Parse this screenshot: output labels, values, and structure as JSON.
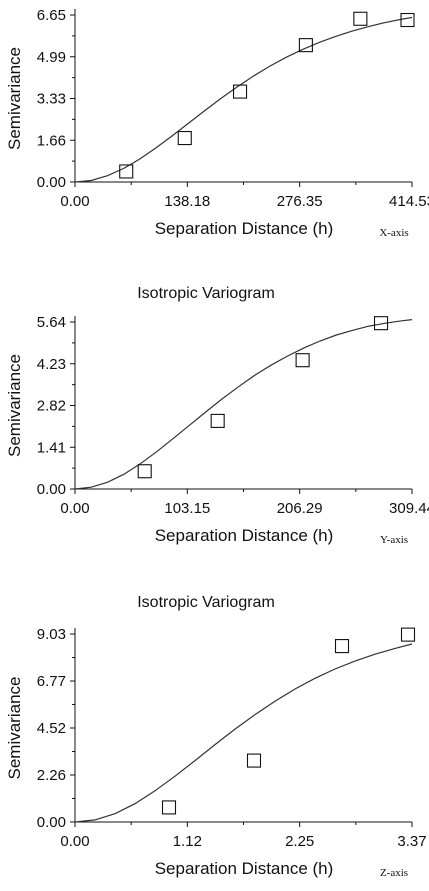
{
  "chart_data": [
    {
      "type": "scatter",
      "title": "",
      "xlabel": "Separation Distance (h)",
      "ylabel": "Semivariance",
      "axis_tag": "X-axis",
      "xlim": [
        0,
        414.53
      ],
      "ylim": [
        0,
        6.65
      ],
      "x_ticks": [
        "0.00",
        "138.18",
        "276.35",
        "414.53"
      ],
      "y_ticks": [
        "0.00",
        "1.66",
        "3.33",
        "4.99",
        "6.65"
      ],
      "grid": false,
      "series": [
        {
          "marker": "open-square",
          "points": [
            {
              "x": 63,
              "y": 0.42
            },
            {
              "x": 135,
              "y": 1.75
            },
            {
              "x": 203,
              "y": 3.6
            },
            {
              "x": 284,
              "y": 5.45
            },
            {
              "x": 351,
              "y": 6.5
            },
            {
              "x": 409,
              "y": 6.45
            }
          ]
        }
      ],
      "model_curve": {
        "type": "line",
        "x": [
          0,
          20,
          40,
          60,
          80,
          100,
          120,
          140,
          160,
          180,
          200,
          220,
          240,
          260,
          280,
          300,
          320,
          340,
          360,
          380,
          400,
          414.53
        ],
        "y": [
          0.0,
          0.06,
          0.25,
          0.54,
          0.92,
          1.37,
          1.85,
          2.35,
          2.85,
          3.34,
          3.8,
          4.23,
          4.62,
          4.97,
          5.28,
          5.55,
          5.79,
          6.0,
          6.18,
          6.34,
          6.47,
          6.55
        ]
      }
    },
    {
      "type": "scatter",
      "title": "Isotropic Variogram",
      "xlabel": "Separation Distance (h)",
      "ylabel": "Semivariance",
      "axis_tag": "Y-axis",
      "xlim": [
        0,
        309.44
      ],
      "ylim": [
        0,
        5.64
      ],
      "x_ticks": [
        "0.00",
        "103.15",
        "206.29",
        "309.44"
      ],
      "y_ticks": [
        "0.00",
        "1.41",
        "2.82",
        "4.23",
        "5.64"
      ],
      "grid": false,
      "series": [
        {
          "marker": "open-square",
          "points": [
            {
              "x": 64,
              "y": 0.6
            },
            {
              "x": 131,
              "y": 2.3
            },
            {
              "x": 209,
              "y": 4.35
            },
            {
              "x": 281,
              "y": 5.6
            }
          ]
        }
      ],
      "model_curve": {
        "type": "line",
        "x": [
          0,
          15,
          30,
          45,
          60,
          75,
          90,
          105,
          120,
          135,
          150,
          165,
          180,
          195,
          210,
          225,
          240,
          255,
          270,
          285,
          300,
          309.44
        ],
        "y": [
          0.0,
          0.06,
          0.23,
          0.5,
          0.85,
          1.26,
          1.7,
          2.15,
          2.6,
          3.04,
          3.45,
          3.84,
          4.18,
          4.49,
          4.76,
          5.0,
          5.2,
          5.36,
          5.5,
          5.6,
          5.68,
          5.72
        ]
      }
    },
    {
      "type": "scatter",
      "title": "Isotropic Variogram",
      "xlabel": "Separation Distance (h)",
      "ylabel": "Semivariance",
      "axis_tag": "Z-axis",
      "xlim": [
        0,
        3.37
      ],
      "ylim": [
        0,
        9.03
      ],
      "x_ticks": [
        "0.00",
        "1.12",
        "2.25",
        "3.37"
      ],
      "y_ticks": [
        "0.00",
        "2.26",
        "4.52",
        "6.77",
        "9.03"
      ],
      "grid": false,
      "series": [
        {
          "marker": "open-square",
          "points": [
            {
              "x": 0.94,
              "y": 0.7
            },
            {
              "x": 1.79,
              "y": 2.95
            },
            {
              "x": 2.67,
              "y": 8.45
            },
            {
              "x": 3.33,
              "y": 9.0
            }
          ]
        }
      ],
      "model_curve": {
        "type": "line",
        "x": [
          0,
          0.2,
          0.4,
          0.6,
          0.8,
          1.0,
          1.2,
          1.4,
          1.6,
          1.8,
          2.0,
          2.2,
          2.4,
          2.6,
          2.8,
          3.0,
          3.2,
          3.37
        ],
        "y": [
          0.0,
          0.1,
          0.4,
          0.88,
          1.5,
          2.2,
          2.95,
          3.72,
          4.46,
          5.16,
          5.8,
          6.39,
          6.9,
          7.35,
          7.73,
          8.06,
          8.34,
          8.55
        ]
      }
    }
  ]
}
